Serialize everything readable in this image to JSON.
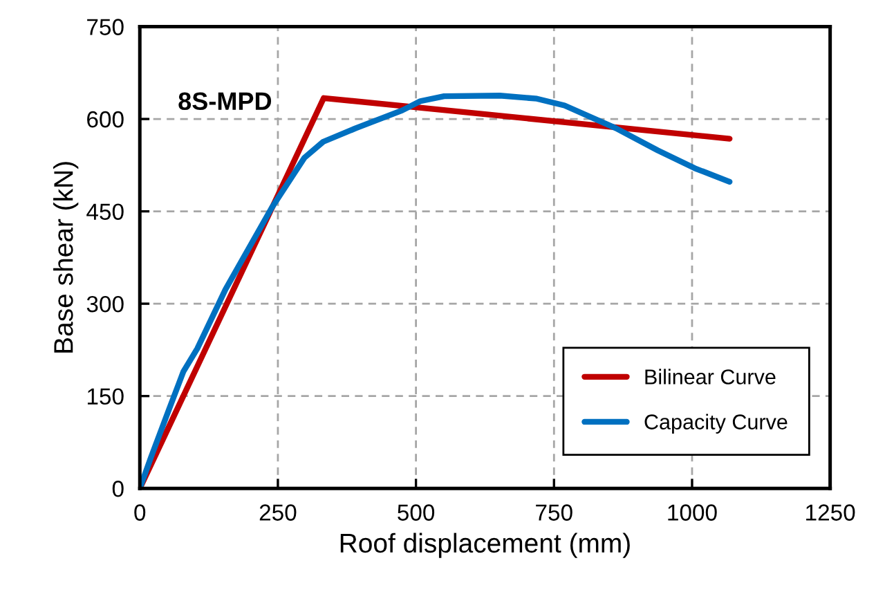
{
  "chart_data": {
    "type": "line",
    "xlabel": "Roof displacement (mm)",
    "ylabel": "Base shear (kN)",
    "annotations": [
      "8S-MPD"
    ],
    "series": [
      {
        "name": "Bilinear Curve",
        "color": "#c00000",
        "x": [
          0,
          333,
          1068
        ],
        "values": [
          0,
          634,
          568
        ]
      },
      {
        "name": "Capacity Curve",
        "color": "#0070c0",
        "x": [
          0,
          20,
          54,
          79,
          104,
          155,
          239,
          298,
          332,
          391,
          475,
          508,
          551,
          652,
          719,
          769,
          862,
          938,
          1005,
          1068
        ],
        "values": [
          0,
          50,
          131,
          190,
          227,
          323,
          456,
          537,
          563,
          585,
          614,
          629,
          637,
          638,
          633,
          622,
          585,
          549,
          520,
          498
        ]
      }
    ],
    "xlim": [
      0,
      1250
    ],
    "ylim": [
      0,
      750
    ],
    "xticks": [
      0,
      250,
      500,
      750,
      1000,
      1250
    ],
    "yticks": [
      0,
      150,
      300,
      450,
      600,
      750
    ],
    "grid": true,
    "legend": "bottom right",
    "marker": "none",
    "line_style": "solid"
  }
}
